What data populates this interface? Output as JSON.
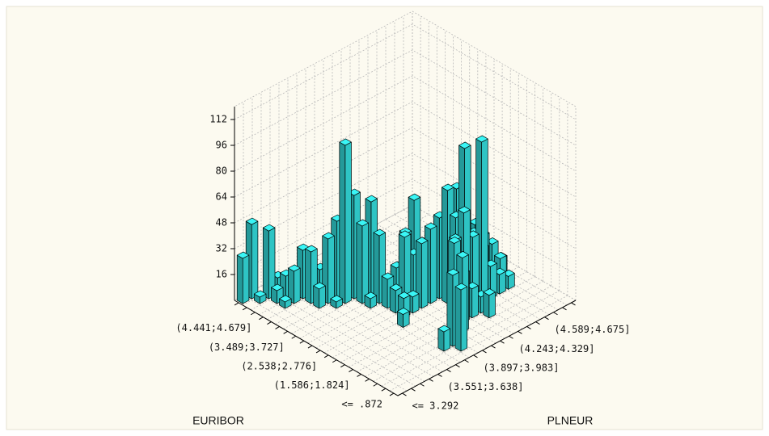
{
  "chart_data": {
    "type": "bar3d",
    "x_label": "EURIBOR",
    "y_label": "PLNEUR",
    "x_categories": [
      "<= .872",
      null,
      null,
      null,
      "(1.586;1.824]",
      null,
      null,
      null,
      "(2.538;2.776]",
      null,
      null,
      null,
      "(3.489;3.727]",
      null,
      null,
      null,
      "(4.441;4.679]",
      null,
      null,
      null
    ],
    "y_categories": [
      "<= 3.292",
      null,
      null,
      null,
      "(3.551;3.638]",
      null,
      null,
      null,
      "(3.897;3.983]",
      null,
      null,
      null,
      "(4.243;4.329]",
      null,
      null,
      null,
      "(4.589;4.675]",
      null,
      null,
      null
    ],
    "values": [
      [
        0,
        0,
        0,
        0,
        0,
        0,
        0,
        0,
        0,
        0,
        0,
        0,
        0,
        0,
        0,
        0,
        0,
        0,
        0,
        0
      ],
      [
        0,
        0,
        0,
        0,
        0,
        0,
        0,
        0,
        38,
        0,
        0,
        0,
        0,
        0,
        0,
        0,
        0,
        0,
        0,
        0
      ],
      [
        0,
        0,
        0,
        0,
        0,
        0,
        0,
        12,
        44,
        0,
        0,
        0,
        0,
        0,
        0,
        0,
        0,
        0,
        0,
        0
      ],
      [
        0,
        0,
        0,
        0,
        0,
        0,
        0,
        0,
        0,
        30,
        46,
        0,
        0,
        14,
        0,
        0,
        0,
        0,
        0,
        0
      ],
      [
        0,
        0,
        0,
        0,
        0,
        0,
        0,
        0,
        0,
        0,
        52,
        30,
        18,
        10,
        0,
        0,
        0,
        0,
        0,
        0
      ],
      [
        0,
        0,
        0,
        0,
        0,
        0,
        0,
        0,
        0,
        0,
        0,
        48,
        62,
        44,
        100,
        20,
        12,
        8,
        0,
        0
      ],
      [
        0,
        0,
        0,
        0,
        0,
        0,
        0,
        0,
        0,
        0,
        0,
        0,
        56,
        96,
        40,
        28,
        6,
        16,
        0,
        0
      ],
      [
        0,
        0,
        0,
        0,
        0,
        0,
        0,
        8,
        0,
        0,
        0,
        0,
        70,
        68,
        36,
        24,
        30,
        22,
        10,
        0
      ],
      [
        0,
        0,
        0,
        0,
        0,
        0,
        0,
        0,
        12,
        10,
        40,
        46,
        50,
        20,
        0,
        28,
        34,
        18,
        0,
        0
      ],
      [
        0,
        0,
        0,
        0,
        0,
        0,
        0,
        0,
        14,
        44,
        30,
        34,
        26,
        8,
        0,
        0,
        20,
        0,
        0,
        0
      ],
      [
        0,
        0,
        0,
        0,
        0,
        0,
        0,
        0,
        18,
        22,
        40,
        58,
        0,
        0,
        0,
        0,
        0,
        0,
        0,
        0
      ],
      [
        0,
        0,
        0,
        0,
        0,
        0,
        0,
        6,
        42,
        8,
        16,
        12,
        0,
        0,
        0,
        0,
        0,
        0,
        0,
        0
      ],
      [
        0,
        0,
        0,
        0,
        0,
        0,
        0,
        48,
        60,
        0,
        0,
        0,
        0,
        0,
        0,
        0,
        0,
        0,
        0,
        0
      ],
      [
        0,
        0,
        0,
        0,
        0,
        4,
        98,
        64,
        10,
        0,
        0,
        0,
        0,
        0,
        0,
        0,
        0,
        0,
        0,
        0
      ],
      [
        0,
        0,
        0,
        0,
        12,
        40,
        48,
        6,
        0,
        0,
        0,
        0,
        0,
        0,
        0,
        0,
        0,
        0,
        0,
        0
      ],
      [
        0,
        0,
        0,
        0,
        32,
        18,
        24,
        0,
        0,
        0,
        0,
        0,
        0,
        0,
        0,
        0,
        0,
        0,
        0,
        0
      ],
      [
        0,
        0,
        4,
        20,
        30,
        16,
        0,
        0,
        0,
        0,
        0,
        0,
        0,
        0,
        0,
        0,
        0,
        0,
        0,
        0
      ],
      [
        0,
        0,
        8,
        14,
        0,
        0,
        0,
        0,
        0,
        0,
        0,
        0,
        0,
        0,
        0,
        0,
        0,
        0,
        0,
        0
      ],
      [
        0,
        4,
        42,
        10,
        0,
        0,
        0,
        0,
        0,
        0,
        0,
        0,
        0,
        0,
        0,
        0,
        0,
        0,
        0,
        0
      ],
      [
        28,
        46,
        0,
        0,
        0,
        0,
        0,
        0,
        0,
        0,
        0,
        0,
        0,
        0,
        0,
        0,
        0,
        0,
        0,
        0
      ]
    ],
    "zlim": [
      0,
      120
    ],
    "zticks": [
      16,
      32,
      48,
      64,
      80,
      96,
      112
    ],
    "color": "#2ec4c4",
    "grid": true
  }
}
